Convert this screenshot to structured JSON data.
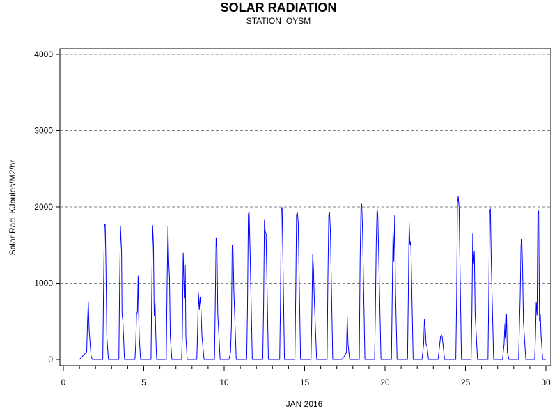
{
  "chart_data": {
    "type": "line",
    "title": "SOLAR RADIATION",
    "subtitle": "STATION=OYSM",
    "xlabel": "JAN 2016",
    "ylabel": "Solar Rad. KJoules/M2/hr",
    "xlim": [
      0,
      30
    ],
    "ylim": [
      0,
      4000
    ],
    "xticks": [
      0,
      5,
      10,
      15,
      20,
      25,
      30
    ],
    "yticks": [
      0,
      1000,
      2000,
      3000,
      4000
    ],
    "grid": "horizontal dashed",
    "color": "#0000ff",
    "series": [
      {
        "x": [
          1.0,
          1.45,
          1.5,
          1.55,
          1.6,
          1.65,
          1.72,
          1.8,
          2.45,
          2.5,
          2.55,
          2.6,
          2.65,
          2.7,
          2.8,
          3.45,
          3.5,
          3.55,
          3.62,
          3.65,
          3.7,
          3.8,
          4.45,
          4.5,
          4.55,
          4.6,
          4.65,
          4.68,
          4.72,
          4.8,
          5.45,
          5.5,
          5.55,
          5.6,
          5.65,
          5.7,
          5.75,
          5.8,
          6.4,
          6.45,
          6.5,
          6.55,
          6.6,
          6.65,
          6.75,
          7.35,
          7.4,
          7.45,
          7.48,
          7.52,
          7.58,
          7.62,
          7.7,
          8.3,
          8.35,
          8.4,
          8.45,
          8.5,
          8.55,
          8.62,
          8.75,
          9.4,
          9.45,
          9.5,
          9.55,
          9.6,
          9.75,
          10.3,
          10.4,
          10.45,
          10.5,
          10.55,
          10.6,
          10.75,
          11.4,
          11.45,
          11.5,
          11.55,
          11.6,
          11.75,
          12.4,
          12.45,
          12.5,
          12.55,
          12.6,
          12.75,
          13.45,
          13.5,
          13.55,
          13.6,
          13.75,
          14.4,
          14.45,
          14.5,
          14.55,
          14.6,
          14.75,
          15.4,
          15.45,
          15.5,
          15.55,
          15.6,
          15.75,
          16.4,
          16.45,
          16.5,
          16.55,
          16.6,
          16.75,
          17.3,
          17.5,
          17.6,
          17.65,
          17.7,
          17.8,
          18.4,
          18.45,
          18.5,
          18.55,
          18.6,
          18.75,
          19.35,
          19.4,
          19.45,
          19.5,
          19.55,
          19.6,
          19.75,
          20.4,
          20.45,
          20.5,
          20.55,
          20.6,
          20.65,
          20.75,
          21.4,
          21.45,
          21.5,
          21.55,
          21.6,
          21.75,
          22.3,
          22.4,
          22.45,
          22.5,
          22.55,
          22.6,
          22.7,
          23.3,
          23.4,
          23.45,
          23.5,
          23.55,
          23.6,
          23.7,
          24.4,
          24.45,
          24.5,
          24.55,
          24.6,
          24.75,
          25.35,
          25.4,
          25.45,
          25.5,
          25.55,
          25.6,
          25.75,
          26.4,
          26.45,
          26.5,
          26.55,
          26.6,
          26.75,
          27.3,
          27.4,
          27.45,
          27.5,
          27.55,
          27.6,
          27.7,
          28.3,
          28.4,
          28.45,
          28.5,
          28.55,
          28.6,
          28.75,
          29.3,
          29.35,
          29.4,
          29.45,
          29.5,
          29.55,
          29.6,
          29.65,
          29.7,
          29.8,
          30.0
        ],
        "y": [
          0,
          100,
          500,
          760,
          400,
          250,
          50,
          0,
          0,
          1000,
          1750,
          1780,
          1200,
          300,
          0,
          0,
          1000,
          1750,
          1400,
          600,
          500,
          0,
          0,
          200,
          600,
          620,
          1100,
          600,
          300,
          0,
          0,
          1000,
          1760,
          1500,
          570,
          740,
          300,
          0,
          0,
          1000,
          1750,
          1300,
          1050,
          300,
          0,
          0,
          300,
          1400,
          1200,
          800,
          1240,
          300,
          0,
          0,
          400,
          880,
          650,
          820,
          700,
          300,
          0,
          0,
          800,
          1600,
          1450,
          600,
          0,
          0,
          100,
          450,
          1500,
          1450,
          900,
          0,
          0,
          700,
          1900,
          1940,
          1500,
          0,
          0,
          700,
          1830,
          1680,
          1650,
          0,
          0,
          800,
          1980,
          1990,
          0,
          0,
          900,
          1900,
          1930,
          1800,
          0,
          0,
          600,
          1380,
          1200,
          800,
          0,
          0,
          1100,
          1900,
          1930,
          1700,
          0,
          0,
          50,
          100,
          560,
          200,
          0,
          0,
          1300,
          2000,
          2040,
          1700,
          0,
          0,
          600,
          1500,
          1980,
          1900,
          1400,
          0,
          0,
          900,
          1700,
          1280,
          1900,
          900,
          0,
          0,
          900,
          1800,
          1500,
          1550,
          0,
          0,
          200,
          530,
          400,
          200,
          180,
          0,
          0,
          200,
          300,
          320,
          300,
          200,
          0,
          0,
          800,
          2050,
          2140,
          2000,
          0,
          0,
          600,
          1650,
          1250,
          1420,
          600,
          0,
          0,
          900,
          1950,
          1970,
          1300,
          0,
          0,
          200,
          470,
          280,
          600,
          100,
          0,
          0,
          800,
          1500,
          1580,
          1200,
          500,
          0,
          0,
          300,
          750,
          580,
          1900,
          1950,
          500,
          600,
          300,
          0,
          0
        ]
      }
    ]
  }
}
